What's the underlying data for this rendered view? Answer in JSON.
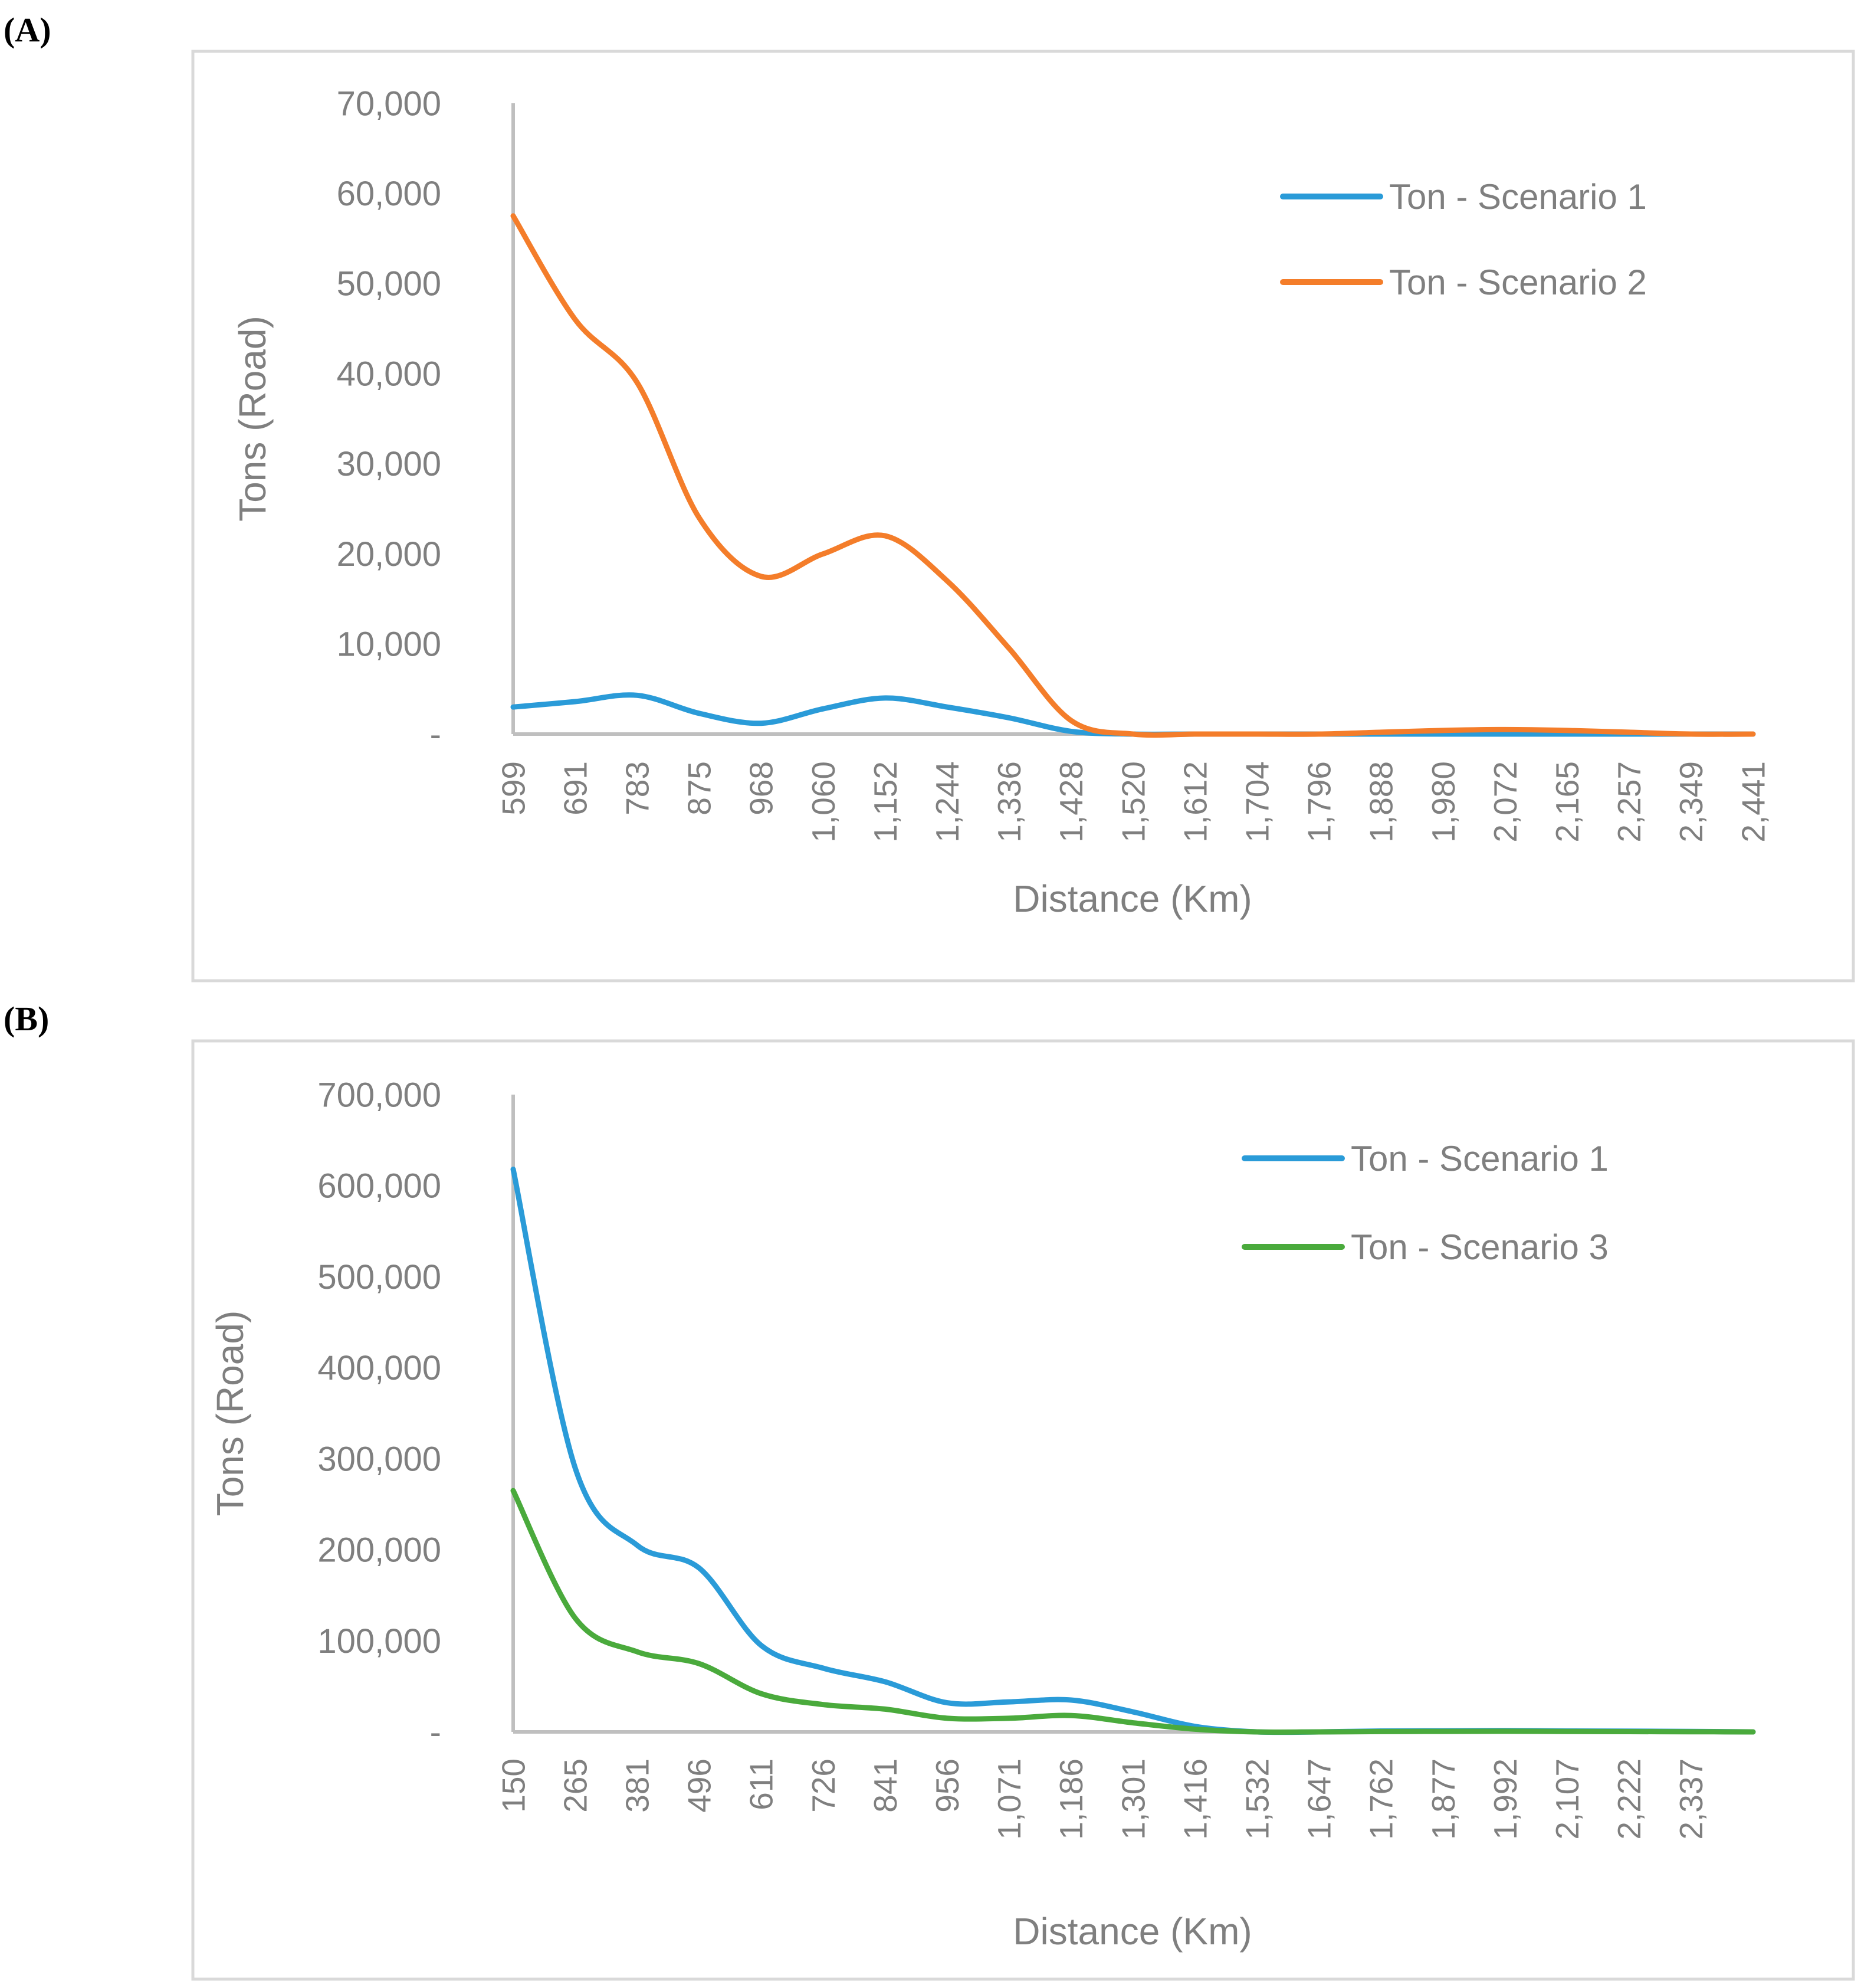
{
  "chart_data": [
    {
      "panel_label": "(A)",
      "type": "line",
      "smooth": true,
      "xlabel": "Distance (Km)",
      "ylabel": "Tons (Road)",
      "ylim": [
        0,
        70000
      ],
      "y_ticks": [
        "-",
        "10,000",
        "20,000",
        "30,000",
        "40,000",
        "50,000",
        "60,000",
        "70,000"
      ],
      "y_tick_values": [
        0,
        10000,
        20000,
        30000,
        40000,
        50000,
        60000,
        70000
      ],
      "categories": [
        "599",
        "691",
        "783",
        "875",
        "968",
        "1,060",
        "1,152",
        "1,244",
        "1,336",
        "1,428",
        "1,520",
        "1,612",
        "1,704",
        "1,796",
        "1,888",
        "1,980",
        "2,072",
        "2,165",
        "2,257",
        "2,349",
        "2,441"
      ],
      "legend_position": "top-right",
      "series": [
        {
          "name": "Ton - Scenario 1",
          "color": "#2a9bd8",
          "values": [
            3000,
            3600,
            4300,
            2300,
            1200,
            2800,
            4000,
            3000,
            1800,
            300,
            0,
            0,
            0,
            0,
            0,
            0,
            0,
            0,
            0,
            0,
            0
          ]
        },
        {
          "name": "Ton - Scenario 2",
          "color": "#f47d2a",
          "values": [
            57500,
            46000,
            39000,
            24000,
            17500,
            20000,
            22000,
            17000,
            9500,
            1500,
            0,
            0,
            0,
            0,
            200,
            400,
            500,
            400,
            200,
            0,
            0
          ]
        }
      ]
    },
    {
      "panel_label": "(B)",
      "type": "line",
      "smooth": true,
      "xlabel": "Distance (Km)",
      "ylabel": "Tons (Road)",
      "ylim": [
        0,
        700000
      ],
      "y_ticks": [
        "-",
        "100,000",
        "200,000",
        "300,000",
        "400,000",
        "500,000",
        "600,000",
        "700,000"
      ],
      "y_tick_values": [
        0,
        100000,
        200000,
        300000,
        400000,
        500000,
        600000,
        700000
      ],
      "categories": [
        "150",
        "265",
        "381",
        "496",
        "611",
        "726",
        "841",
        "956",
        "1,071",
        "1,186",
        "1,301",
        "1,416",
        "1,532",
        "1,647",
        "1,762",
        "1,877",
        "1,992",
        "2,107",
        "2,222",
        "2,337",
        ""
      ],
      "legend_position": "top-right",
      "series": [
        {
          "name": "Ton - Scenario 1",
          "color": "#2a9bd8",
          "values": [
            618000,
            290000,
            205000,
            180000,
            95000,
            70000,
            55000,
            32000,
            33000,
            35000,
            22000,
            6000,
            0,
            0,
            1000,
            1200,
            1500,
            1000,
            800,
            500,
            0
          ]
        },
        {
          "name": "Ton - Scenario 3",
          "color": "#4aaa3c",
          "values": [
            265000,
            125000,
            88000,
            75000,
            42000,
            30000,
            25000,
            15000,
            15000,
            18000,
            10000,
            3000,
            0,
            0,
            400,
            600,
            700,
            500,
            300,
            200,
            0
          ]
        }
      ]
    }
  ]
}
